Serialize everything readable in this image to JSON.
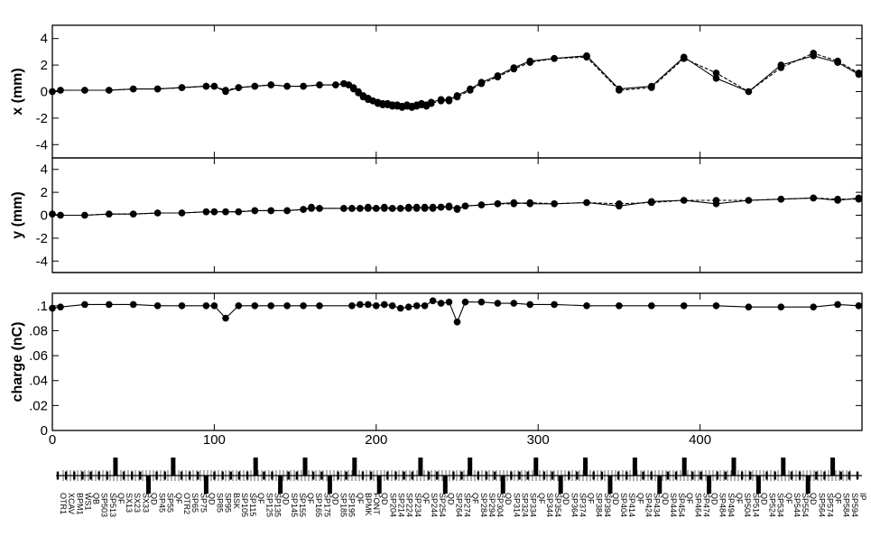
{
  "chart_data": [
    {
      "type": "line",
      "ylabel": "x (mm)",
      "ylim": [
        -5,
        5
      ],
      "yticks": [
        "-4",
        "-2",
        "0",
        "2",
        "4"
      ],
      "xlim": [
        0,
        500
      ],
      "series": [
        {
          "x": [
            0,
            5,
            20,
            35,
            50,
            65,
            80,
            95,
            100,
            107,
            115,
            125,
            135,
            145,
            155,
            165,
            175,
            180,
            183,
            186,
            189,
            192,
            195,
            198,
            201,
            204,
            207,
            210,
            213,
            216,
            219,
            222,
            225,
            228,
            231,
            234,
            240,
            245,
            250,
            258,
            265,
            275,
            285,
            295,
            310,
            330,
            350,
            370,
            390,
            410,
            430,
            450,
            470,
            485,
            498
          ],
          "y": [
            0,
            0.1,
            0.1,
            0.1,
            0.2,
            0.2,
            0.3,
            0.4,
            0.4,
            0,
            0.3,
            0.4,
            0.5,
            0.4,
            0.4,
            0.5,
            0.5,
            0.6,
            0.5,
            0.3,
            0,
            -0.3,
            -0.5,
            -0.7,
            -0.8,
            -0.9,
            -0.9,
            -1,
            -1,
            -1.1,
            -1,
            -1.1,
            -1,
            -0.9,
            -1,
            -0.8,
            -0.6,
            -0.6,
            -0.3,
            0.2,
            0.7,
            1.2,
            1.8,
            2.3,
            2.5,
            2.7,
            0.2,
            0.4,
            2.6,
            1,
            0,
            2,
            2.7,
            2.2,
            1.3
          ]
        },
        {
          "x": [
            0,
            5,
            20,
            35,
            50,
            65,
            80,
            95,
            100,
            107,
            115,
            125,
            135,
            145,
            155,
            165,
            175,
            180,
            183,
            186,
            189,
            192,
            195,
            198,
            201,
            204,
            207,
            210,
            213,
            216,
            219,
            222,
            225,
            228,
            231,
            234,
            240,
            245,
            250,
            258,
            265,
            275,
            285,
            295,
            310,
            330,
            350,
            370,
            390,
            410,
            430,
            450,
            470,
            485,
            498
          ],
          "y": [
            0,
            0.1,
            0.1,
            0.1,
            0.2,
            0.2,
            0.3,
            0.4,
            0.4,
            0.1,
            0.3,
            0.4,
            0.5,
            0.4,
            0.4,
            0.5,
            0.5,
            0.6,
            0.5,
            0.2,
            -0.1,
            -0.4,
            -0.6,
            -0.7,
            -0.9,
            -1,
            -1,
            -1.1,
            -1.1,
            -1.2,
            -1.1,
            -1.2,
            -1.1,
            -1,
            -1.1,
            -0.9,
            -0.7,
            -0.7,
            -0.4,
            0.1,
            0.6,
            1.1,
            1.7,
            2.2,
            2.5,
            2.6,
            0.1,
            0.3,
            2.5,
            1.4,
            0,
            1.8,
            2.9,
            2.3,
            1.4
          ]
        }
      ]
    },
    {
      "type": "line",
      "ylabel": "y (mm)",
      "ylim": [
        -5,
        5
      ],
      "yticks": [
        "-4",
        "-2",
        "0",
        "2",
        "4"
      ],
      "xlim": [
        0,
        500
      ],
      "series": [
        {
          "x": [
            0,
            5,
            20,
            35,
            50,
            65,
            80,
            95,
            100,
            107,
            115,
            125,
            135,
            145,
            155,
            160,
            165,
            180,
            185,
            190,
            195,
            200,
            205,
            210,
            215,
            220,
            225,
            230,
            235,
            240,
            245,
            250,
            255,
            265,
            275,
            285,
            295,
            310,
            330,
            350,
            370,
            390,
            410,
            430,
            450,
            470,
            485,
            498
          ],
          "y": [
            0.1,
            0,
            0,
            0.1,
            0.1,
            0.2,
            0.2,
            0.3,
            0.3,
            0.3,
            0.3,
            0.4,
            0.4,
            0.4,
            0.5,
            0.7,
            0.6,
            0.6,
            0.6,
            0.6,
            0.7,
            0.6,
            0.7,
            0.6,
            0.6,
            0.7,
            0.7,
            0.6,
            0.6,
            0.7,
            0.8,
            0.5,
            0.8,
            0.9,
            1,
            1.1,
            1,
            1,
            1.1,
            0.8,
            1.2,
            1.3,
            1,
            1.3,
            1.4,
            1.5,
            1.3,
            1.5
          ]
        },
        {
          "x": [
            0,
            5,
            20,
            35,
            50,
            65,
            80,
            95,
            100,
            107,
            115,
            125,
            135,
            145,
            155,
            160,
            165,
            180,
            185,
            190,
            195,
            200,
            205,
            210,
            215,
            220,
            225,
            230,
            235,
            240,
            245,
            250,
            255,
            265,
            275,
            285,
            295,
            310,
            330,
            350,
            370,
            390,
            410,
            430,
            450,
            470,
            485,
            498
          ],
          "y": [
            0.1,
            0,
            0,
            0.1,
            0.1,
            0.2,
            0.2,
            0.3,
            0.3,
            0.3,
            0.3,
            0.4,
            0.4,
            0.4,
            0.5,
            0.6,
            0.6,
            0.6,
            0.6,
            0.6,
            0.6,
            0.6,
            0.6,
            0.6,
            0.6,
            0.6,
            0.6,
            0.7,
            0.7,
            0.7,
            0.7,
            0.6,
            0.8,
            0.9,
            1,
            1,
            1.1,
            1,
            1.1,
            1,
            1.1,
            1.3,
            1.3,
            1.3,
            1.4,
            1.5,
            1.4,
            1.4
          ]
        }
      ]
    },
    {
      "type": "line",
      "ylabel": "charge (nC)",
      "ylim": [
        0,
        0.11
      ],
      "yticks": [
        "0",
        ".02",
        ".04",
        ".06",
        ".08",
        ".1"
      ],
      "xlim": [
        0,
        500
      ],
      "xticks": [
        "0",
        "100",
        "200",
        "300",
        "400"
      ],
      "series": [
        {
          "x": [
            0,
            5,
            20,
            35,
            50,
            65,
            80,
            95,
            100,
            107,
            115,
            125,
            135,
            145,
            155,
            165,
            185,
            190,
            195,
            200,
            205,
            210,
            215,
            220,
            225,
            230,
            235,
            240,
            245,
            250,
            255,
            265,
            275,
            285,
            295,
            310,
            330,
            350,
            370,
            390,
            410,
            430,
            450,
            470,
            485,
            498
          ],
          "y": [
            0.098,
            0.099,
            0.101,
            0.101,
            0.101,
            0.1,
            0.1,
            0.1,
            0.1,
            0.09,
            0.1,
            0.1,
            0.1,
            0.1,
            0.1,
            0.1,
            0.1,
            0.101,
            0.101,
            0.1,
            0.101,
            0.1,
            0.098,
            0.099,
            0.1,
            0.1,
            0.104,
            0.102,
            0.103,
            0.087,
            0.103,
            0.103,
            0.102,
            0.102,
            0.101,
            0.101,
            0.1,
            0.1,
            0.1,
            0.1,
            0.1,
            0.099,
            0.099,
            0.099,
            0.101,
            0.1
          ]
        }
      ]
    }
  ],
  "beamline": {
    "element_labels": [
      "OTR1",
      "XCAV",
      "BPM1",
      "WS1",
      "QB",
      "SP503",
      "SP513",
      "QF",
      "SX13",
      "SX23",
      "SX33",
      "QD",
      "SP45",
      "SP55",
      "QF",
      "OTR2",
      "SP65",
      "SP75",
      "QD",
      "SP85",
      "SP95",
      "BSK",
      "SP105",
      "SP115",
      "QF",
      "SP125",
      "SP135",
      "QD",
      "SP145",
      "SP155",
      "QF",
      "SP165",
      "SP175",
      "QD",
      "SP185",
      "SP195",
      "QF",
      "BPMK",
      "FONT",
      "QD",
      "SP204",
      "SP214",
      "SP224",
      "SP234",
      "QF",
      "SP244",
      "SP254",
      "QD",
      "SP264",
      "SP274",
      "QF",
      "SP284",
      "SP294",
      "SP304",
      "QD",
      "SP314",
      "SP324",
      "SP334",
      "QF",
      "SP344",
      "SP354",
      "QD",
      "SP364",
      "SP374",
      "QF",
      "SP384",
      "SP394",
      "QD",
      "SP404",
      "SP414",
      "QF",
      "SP424",
      "SP434",
      "QD",
      "SP444",
      "SP454",
      "QF",
      "SP464",
      "SP474",
      "QD",
      "SP484",
      "SP494",
      "QF",
      "SP504",
      "SP514",
      "QD",
      "SP524",
      "SP534",
      "QF",
      "SP544",
      "SP554",
      "QD",
      "SP564",
      "SP574",
      "QF",
      "SP584",
      "SP594",
      "IP"
    ]
  }
}
